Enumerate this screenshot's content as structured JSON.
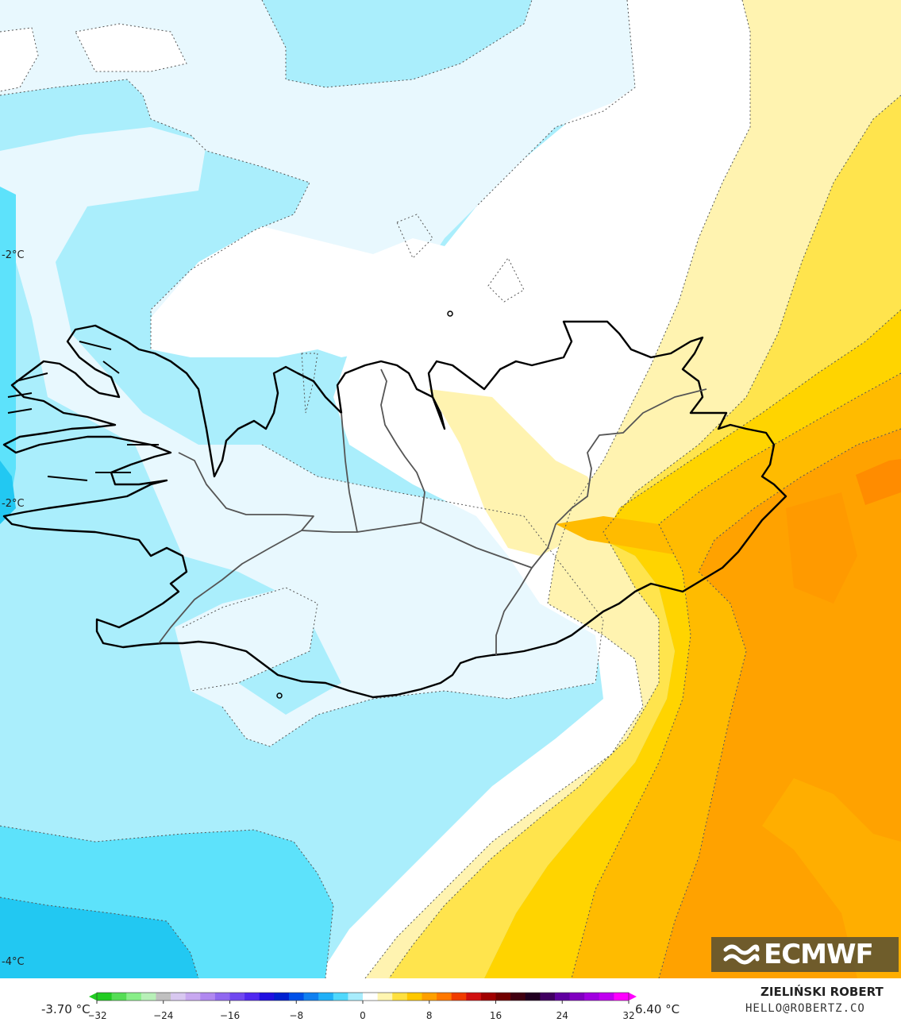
{
  "map": {
    "contour_labels": [
      "-2°C",
      "-2°C",
      "-4°C"
    ],
    "palette": {
      "cyan_deep": "#22c8f2",
      "cyan_mid": "#5de2fb",
      "cyan_light": "#aaeefc",
      "ice": "#e8f8fe",
      "white": "#ffffff",
      "pale_yellow": "#fff3b0",
      "yellow": "#ffe44d",
      "gold": "#ffd400",
      "orange_light": "#ffbb00",
      "orange": "#ffa200",
      "orange_dark": "#ff8c00",
      "coast": "#000000",
      "border": "#555555"
    }
  },
  "logo": {
    "text": "ECMWF",
    "icon": "ecmwf-logo-icon"
  },
  "legend": {
    "min_label": "-3.70 °C",
    "max_label": "6.40 °C",
    "ticks": [
      "−32",
      "−24",
      "−16",
      "−8",
      "0",
      "8",
      "16",
      "24",
      "32"
    ],
    "range": [
      -32,
      32
    ],
    "colors": [
      "#22cc22",
      "#55dd55",
      "#88ee88",
      "#b8f0b8",
      "#c0c0c0",
      "#d8c8f0",
      "#c8a8f0",
      "#b088f0",
      "#9068f0",
      "#7048f0",
      "#5028f0",
      "#2010e0",
      "#0020d0",
      "#0050e8",
      "#1080f0",
      "#20b0f8",
      "#50d8fc",
      "#a8ecfc",
      "#ffffff",
      "#fff5b0",
      "#ffe040",
      "#ffc800",
      "#ffa000",
      "#ff7800",
      "#f03c00",
      "#d01010",
      "#a00000",
      "#700000",
      "#400010",
      "#200020",
      "#400060",
      "#6000a0",
      "#8000c0",
      "#a000e0",
      "#c000f0",
      "#ff00ff"
    ]
  },
  "credits": {
    "author": "ZIELIŃSKI ROBERT",
    "email": "HELLO@ROBERTZ.CO"
  }
}
